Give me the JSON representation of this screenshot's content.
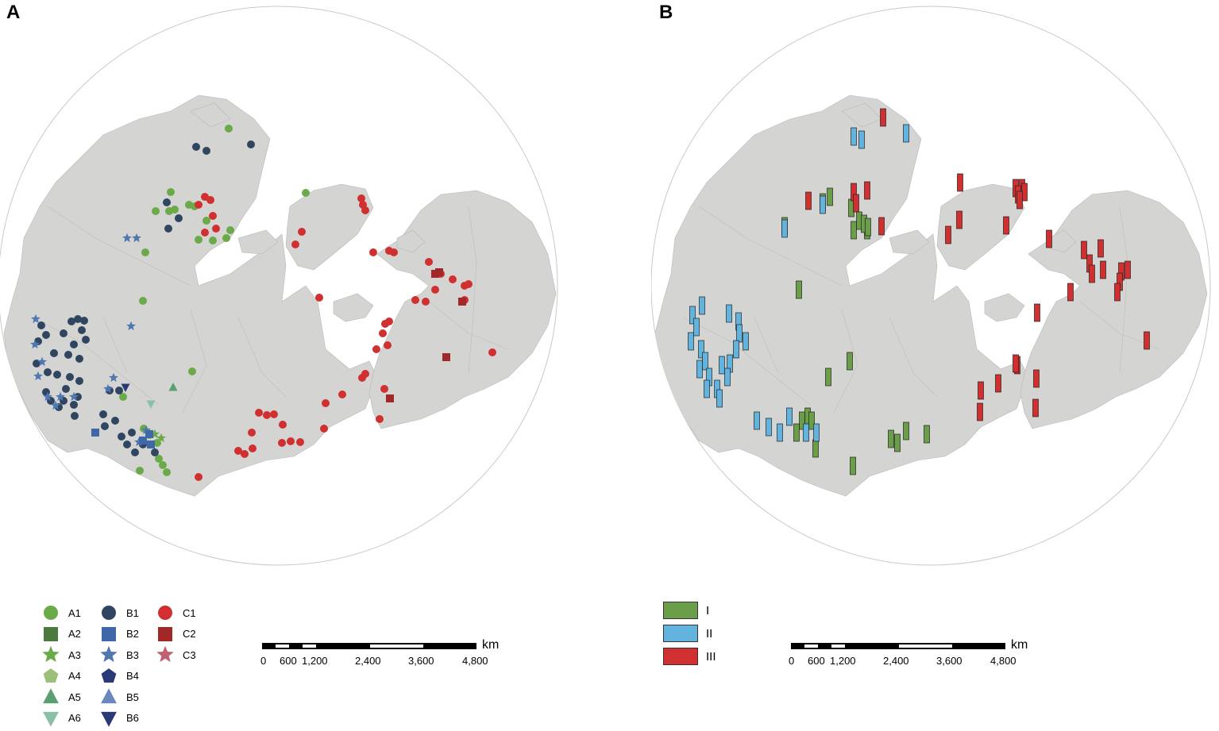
{
  "panels": [
    {
      "letter": "A"
    },
    {
      "letter": "B"
    }
  ],
  "legend_a": [
    {
      "label": "A1",
      "shape": "circle",
      "color": "#6aaa48"
    },
    {
      "label": "A2",
      "shape": "square",
      "color": "#4a7a3e"
    },
    {
      "label": "A3",
      "shape": "star",
      "color": "#6aaa48"
    },
    {
      "label": "A4",
      "shape": "pentagon",
      "color": "#9cc07a"
    },
    {
      "label": "A5",
      "shape": "triangle",
      "color": "#5aa070"
    },
    {
      "label": "A6",
      "shape": "triangle-down",
      "color": "#8ac0a8"
    },
    {
      "label": "B1",
      "shape": "circle",
      "color": "#2f4560"
    },
    {
      "label": "B2",
      "shape": "square",
      "color": "#4068a8"
    },
    {
      "label": "B3",
      "shape": "star",
      "color": "#5078b0"
    },
    {
      "label": "B4",
      "shape": "pentagon",
      "color": "#2a3a78"
    },
    {
      "label": "B5",
      "shape": "triangle",
      "color": "#6a88c0"
    },
    {
      "label": "B6",
      "shape": "triangle-down",
      "color": "#2a3a78"
    },
    {
      "label": "C1",
      "shape": "circle",
      "color": "#d03030"
    },
    {
      "label": "C2",
      "shape": "square",
      "color": "#a02828"
    },
    {
      "label": "C3",
      "shape": "star",
      "color": "#c06070"
    }
  ],
  "legend_b": [
    {
      "label": "I",
      "color": "#6a9e48"
    },
    {
      "label": "II",
      "color": "#62b4de"
    },
    {
      "label": "III",
      "color": "#d03030"
    }
  ],
  "scalebar": {
    "unit": "km",
    "ticks": [
      "0",
      "600",
      "1,200",
      "2,400",
      "3,600",
      "4,800"
    ]
  },
  "colors": {
    "land": "#d4d4d2",
    "ocean": "#ffffff",
    "border": "#b8b8b8"
  },
  "map_a_points": {
    "A1": [
      [
        288,
        162
      ],
      [
        245,
        260
      ],
      [
        213,
        266
      ],
      [
        220,
        264
      ],
      [
        196,
        266
      ],
      [
        215,
        242
      ],
      [
        238,
        258
      ],
      [
        260,
        278
      ],
      [
        250,
        302
      ],
      [
        268,
        303
      ],
      [
        285,
        300
      ],
      [
        290,
        290
      ],
      [
        183,
        318
      ],
      [
        180,
        379
      ],
      [
        385,
        243
      ],
      [
        242,
        468
      ],
      [
        155,
        500
      ],
      [
        188,
        548
      ],
      [
        178,
        556
      ],
      [
        198,
        558
      ],
      [
        200,
        578
      ],
      [
        205,
        586
      ],
      [
        176,
        593
      ],
      [
        210,
        595
      ],
      [
        181,
        540
      ]
    ],
    "B1": [
      [
        247,
        185
      ],
      [
        260,
        190
      ],
      [
        316,
        182
      ],
      [
        210,
        255
      ],
      [
        212,
        288
      ],
      [
        225,
        275
      ],
      [
        52,
        410
      ],
      [
        58,
        422
      ],
      [
        48,
        430
      ],
      [
        90,
        405
      ],
      [
        98,
        402
      ],
      [
        106,
        404
      ],
      [
        80,
        420
      ],
      [
        103,
        416
      ],
      [
        108,
        428
      ],
      [
        93,
        434
      ],
      [
        68,
        445
      ],
      [
        86,
        447
      ],
      [
        100,
        452
      ],
      [
        46,
        458
      ],
      [
        60,
        469
      ],
      [
        72,
        472
      ],
      [
        88,
        475
      ],
      [
        100,
        480
      ],
      [
        83,
        490
      ],
      [
        58,
        494
      ],
      [
        64,
        505
      ],
      [
        80,
        505
      ],
      [
        93,
        510
      ],
      [
        98,
        500
      ],
      [
        74,
        513
      ],
      [
        94,
        524
      ],
      [
        138,
        492
      ],
      [
        150,
        492
      ],
      [
        130,
        522
      ],
      [
        145,
        530
      ],
      [
        132,
        537
      ],
      [
        153,
        550
      ],
      [
        160,
        560
      ],
      [
        170,
        570
      ],
      [
        180,
        560
      ],
      [
        195,
        570
      ],
      [
        166,
        545
      ]
    ],
    "C1": [
      [
        250,
        258
      ],
      [
        258,
        248
      ],
      [
        265,
        252
      ],
      [
        268,
        272
      ],
      [
        258,
        293
      ],
      [
        272,
        288
      ],
      [
        372,
        308
      ],
      [
        380,
        292
      ],
      [
        455,
        250
      ],
      [
        457,
        258
      ],
      [
        460,
        265
      ],
      [
        470,
        318
      ],
      [
        490,
        316
      ],
      [
        496,
        318
      ],
      [
        540,
        330
      ],
      [
        555,
        345
      ],
      [
        570,
        352
      ],
      [
        585,
        360
      ],
      [
        590,
        358
      ],
      [
        585,
        378
      ],
      [
        548,
        365
      ],
      [
        536,
        380
      ],
      [
        523,
        378
      ],
      [
        402,
        375
      ],
      [
        485,
        408
      ],
      [
        490,
        405
      ],
      [
        482,
        420
      ],
      [
        488,
        435
      ],
      [
        474,
        440
      ],
      [
        456,
        476
      ],
      [
        460,
        471
      ],
      [
        484,
        490
      ],
      [
        431,
        497
      ],
      [
        410,
        508
      ],
      [
        620,
        444
      ],
      [
        326,
        520
      ],
      [
        336,
        523
      ],
      [
        345,
        522
      ],
      [
        356,
        535
      ],
      [
        355,
        558
      ],
      [
        366,
        556
      ],
      [
        378,
        557
      ],
      [
        317,
        545
      ],
      [
        300,
        568
      ],
      [
        308,
        572
      ],
      [
        318,
        565
      ],
      [
        408,
        540
      ],
      [
        478,
        528
      ],
      [
        250,
        601
      ]
    ],
    "C2": [
      [
        548,
        345
      ],
      [
        553,
        343
      ],
      [
        582,
        380
      ],
      [
        562,
        450
      ],
      [
        491,
        502
      ]
    ],
    "B3": [
      [
        160,
        300
      ],
      [
        172,
        300
      ],
      [
        45,
        402
      ],
      [
        44,
        434
      ],
      [
        53,
        456
      ],
      [
        48,
        474
      ],
      [
        60,
        500
      ],
      [
        70,
        511
      ],
      [
        76,
        500
      ],
      [
        93,
        500
      ],
      [
        143,
        476
      ],
      [
        165,
        411
      ],
      [
        136,
        490
      ],
      [
        184,
        542
      ],
      [
        175,
        557
      ]
    ],
    "A3": [
      [
        188,
        545
      ],
      [
        195,
        547
      ],
      [
        203,
        552
      ]
    ],
    "A5": [
      [
        218,
        488
      ]
    ],
    "A6": [
      [
        190,
        509
      ]
    ],
    "B6": [
      [
        158,
        488
      ]
    ],
    "B2": [
      [
        120,
        545
      ],
      [
        180,
        555
      ],
      [
        190,
        560
      ],
      [
        188,
        547
      ]
    ]
  },
  "map_b_bars": {
    "I": [
      [
        1045,
        248
      ],
      [
        1036,
        255
      ],
      [
        988,
        285
      ],
      [
        1072,
        262
      ],
      [
        1082,
        278
      ],
      [
        1092,
        290
      ],
      [
        1075,
        290
      ],
      [
        1006,
        365
      ],
      [
        1070,
        455
      ],
      [
        1043,
        475
      ],
      [
        1010,
        530
      ],
      [
        1017,
        525
      ],
      [
        1022,
        530
      ],
      [
        1003,
        545
      ],
      [
        1027,
        565
      ],
      [
        1122,
        553
      ],
      [
        1130,
        558
      ],
      [
        1141,
        543
      ],
      [
        1167,
        547
      ],
      [
        1074,
        587
      ],
      [
        1088,
        282
      ],
      [
        1093,
        286
      ]
    ],
    "II": [
      [
        1075,
        172
      ],
      [
        1085,
        176
      ],
      [
        1141,
        168
      ],
      [
        1036,
        258
      ],
      [
        988,
        288
      ],
      [
        884,
        385
      ],
      [
        872,
        397
      ],
      [
        877,
        412
      ],
      [
        870,
        430
      ],
      [
        883,
        440
      ],
      [
        918,
        395
      ],
      [
        930,
        405
      ],
      [
        931,
        420
      ],
      [
        927,
        440
      ],
      [
        939,
        430
      ],
      [
        909,
        460
      ],
      [
        919,
        458
      ],
      [
        916,
        475
      ],
      [
        888,
        455
      ],
      [
        881,
        465
      ],
      [
        893,
        475
      ],
      [
        890,
        490
      ],
      [
        903,
        490
      ],
      [
        906,
        502
      ],
      [
        953,
        530
      ],
      [
        968,
        538
      ],
      [
        982,
        545
      ],
      [
        994,
        525
      ],
      [
        1015,
        545
      ],
      [
        1028,
        545
      ]
    ],
    "III": [
      [
        1112,
        148
      ],
      [
        1209,
        230
      ],
      [
        1279,
        237
      ],
      [
        1287,
        237
      ],
      [
        1290,
        242
      ],
      [
        1282,
        245
      ],
      [
        1284,
        252
      ],
      [
        1075,
        242
      ],
      [
        1092,
        240
      ],
      [
        1078,
        256
      ],
      [
        1018,
        253
      ],
      [
        1110,
        285
      ],
      [
        1208,
        277
      ],
      [
        1194,
        296
      ],
      [
        1267,
        284
      ],
      [
        1321,
        301
      ],
      [
        1365,
        315
      ],
      [
        1372,
        332
      ],
      [
        1375,
        345
      ],
      [
        1386,
        313
      ],
      [
        1389,
        340
      ],
      [
        1412,
        342
      ],
      [
        1410,
        355
      ],
      [
        1420,
        340
      ],
      [
        1407,
        368
      ],
      [
        1348,
        368
      ],
      [
        1306,
        394
      ],
      [
        1444,
        429
      ],
      [
        1281,
        460
      ],
      [
        1279,
        458
      ],
      [
        1257,
        483
      ],
      [
        1235,
        492
      ],
      [
        1305,
        477
      ],
      [
        1234,
        519
      ],
      [
        1304,
        514
      ]
    ]
  }
}
